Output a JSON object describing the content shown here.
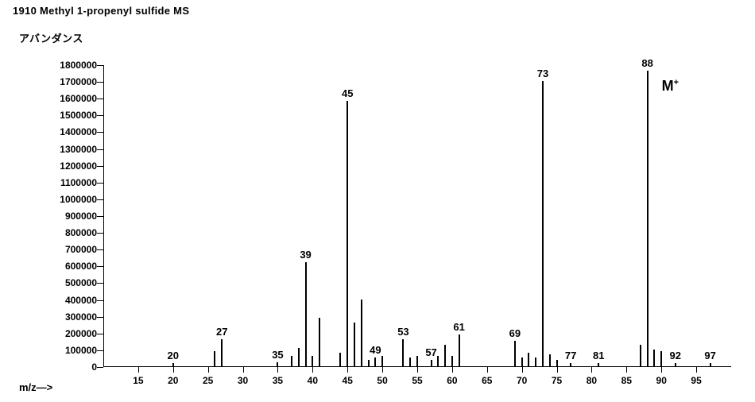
{
  "header": {
    "title": "1910   Methyl 1-propenyl sulfide   MS"
  },
  "labels": {
    "y": "アバンダンス",
    "x": "m/z—>",
    "molecular_ion": "M⁺"
  },
  "chart": {
    "type": "bar",
    "xlim": [
      10,
      100
    ],
    "ylim": [
      0,
      1800000
    ],
    "ytick_step": 100000,
    "xticks": [
      15,
      20,
      25,
      30,
      35,
      40,
      45,
      50,
      55,
      60,
      65,
      70,
      75,
      80,
      85,
      90,
      95
    ],
    "bar_color": "#000000",
    "axis_color": "#000000",
    "font_size_ticks": 12,
    "font_size_labels": 13,
    "peaks": [
      {
        "mz": 20,
        "abund": 20000,
        "label": "20"
      },
      {
        "mz": 26,
        "abund": 90000
      },
      {
        "mz": 27,
        "abund": 160000,
        "label": "27"
      },
      {
        "mz": 35,
        "abund": 25000,
        "label": "35"
      },
      {
        "mz": 37,
        "abund": 60000
      },
      {
        "mz": 38,
        "abund": 110000
      },
      {
        "mz": 39,
        "abund": 620000,
        "label": "39"
      },
      {
        "mz": 40,
        "abund": 60000
      },
      {
        "mz": 41,
        "abund": 290000
      },
      {
        "mz": 44,
        "abund": 80000
      },
      {
        "mz": 45,
        "abund": 1580000,
        "label": "45"
      },
      {
        "mz": 46,
        "abund": 260000
      },
      {
        "mz": 47,
        "abund": 400000
      },
      {
        "mz": 48,
        "abund": 40000
      },
      {
        "mz": 49,
        "abund": 50000,
        "label": "49"
      },
      {
        "mz": 50,
        "abund": 60000
      },
      {
        "mz": 53,
        "abund": 160000,
        "label": "53"
      },
      {
        "mz": 54,
        "abund": 50000
      },
      {
        "mz": 55,
        "abund": 60000
      },
      {
        "mz": 57,
        "abund": 40000,
        "label": "57"
      },
      {
        "mz": 58,
        "abund": 60000
      },
      {
        "mz": 59,
        "abund": 130000
      },
      {
        "mz": 60,
        "abund": 60000
      },
      {
        "mz": 61,
        "abund": 190000,
        "label": "61"
      },
      {
        "mz": 69,
        "abund": 150000,
        "label": "69"
      },
      {
        "mz": 70,
        "abund": 50000
      },
      {
        "mz": 71,
        "abund": 80000
      },
      {
        "mz": 72,
        "abund": 50000
      },
      {
        "mz": 73,
        "abund": 1700000,
        "label": "73"
      },
      {
        "mz": 74,
        "abund": 70000
      },
      {
        "mz": 75,
        "abund": 40000
      },
      {
        "mz": 77,
        "abund": 20000,
        "label": "77"
      },
      {
        "mz": 81,
        "abund": 20000,
        "label": "81"
      },
      {
        "mz": 87,
        "abund": 130000
      },
      {
        "mz": 88,
        "abund": 1760000,
        "label": "88",
        "is_M": true
      },
      {
        "mz": 89,
        "abund": 100000
      },
      {
        "mz": 90,
        "abund": 90000
      },
      {
        "mz": 92,
        "abund": 20000,
        "label": "92"
      },
      {
        "mz": 97,
        "abund": 20000,
        "label": "97"
      }
    ]
  }
}
